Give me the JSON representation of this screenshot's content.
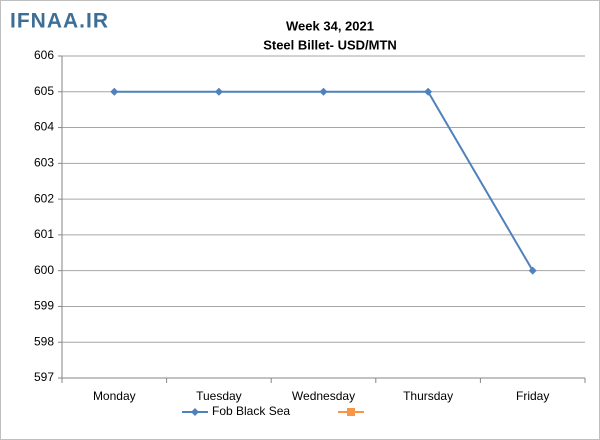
{
  "watermark": "IFNAA.IR",
  "chart_data": {
    "type": "line",
    "title": "Week 34, 2021",
    "subtitle": "Steel Billet- USD/MTN",
    "categories": [
      "Monday",
      "Tuesday",
      "Wednesday",
      "Thursday",
      "Friday"
    ],
    "series": [
      {
        "name": "Fob Black Sea",
        "color": "#4f81bd",
        "values": [
          605,
          605,
          605,
          605,
          600
        ]
      },
      {
        "color": "#f79646",
        "values": [
          null,
          null,
          null,
          null,
          null
        ]
      }
    ],
    "ylim": [
      597,
      606
    ],
    "yticks": [
      597,
      598,
      599,
      600,
      601,
      602,
      603,
      604,
      605,
      606
    ],
    "grid": true
  }
}
